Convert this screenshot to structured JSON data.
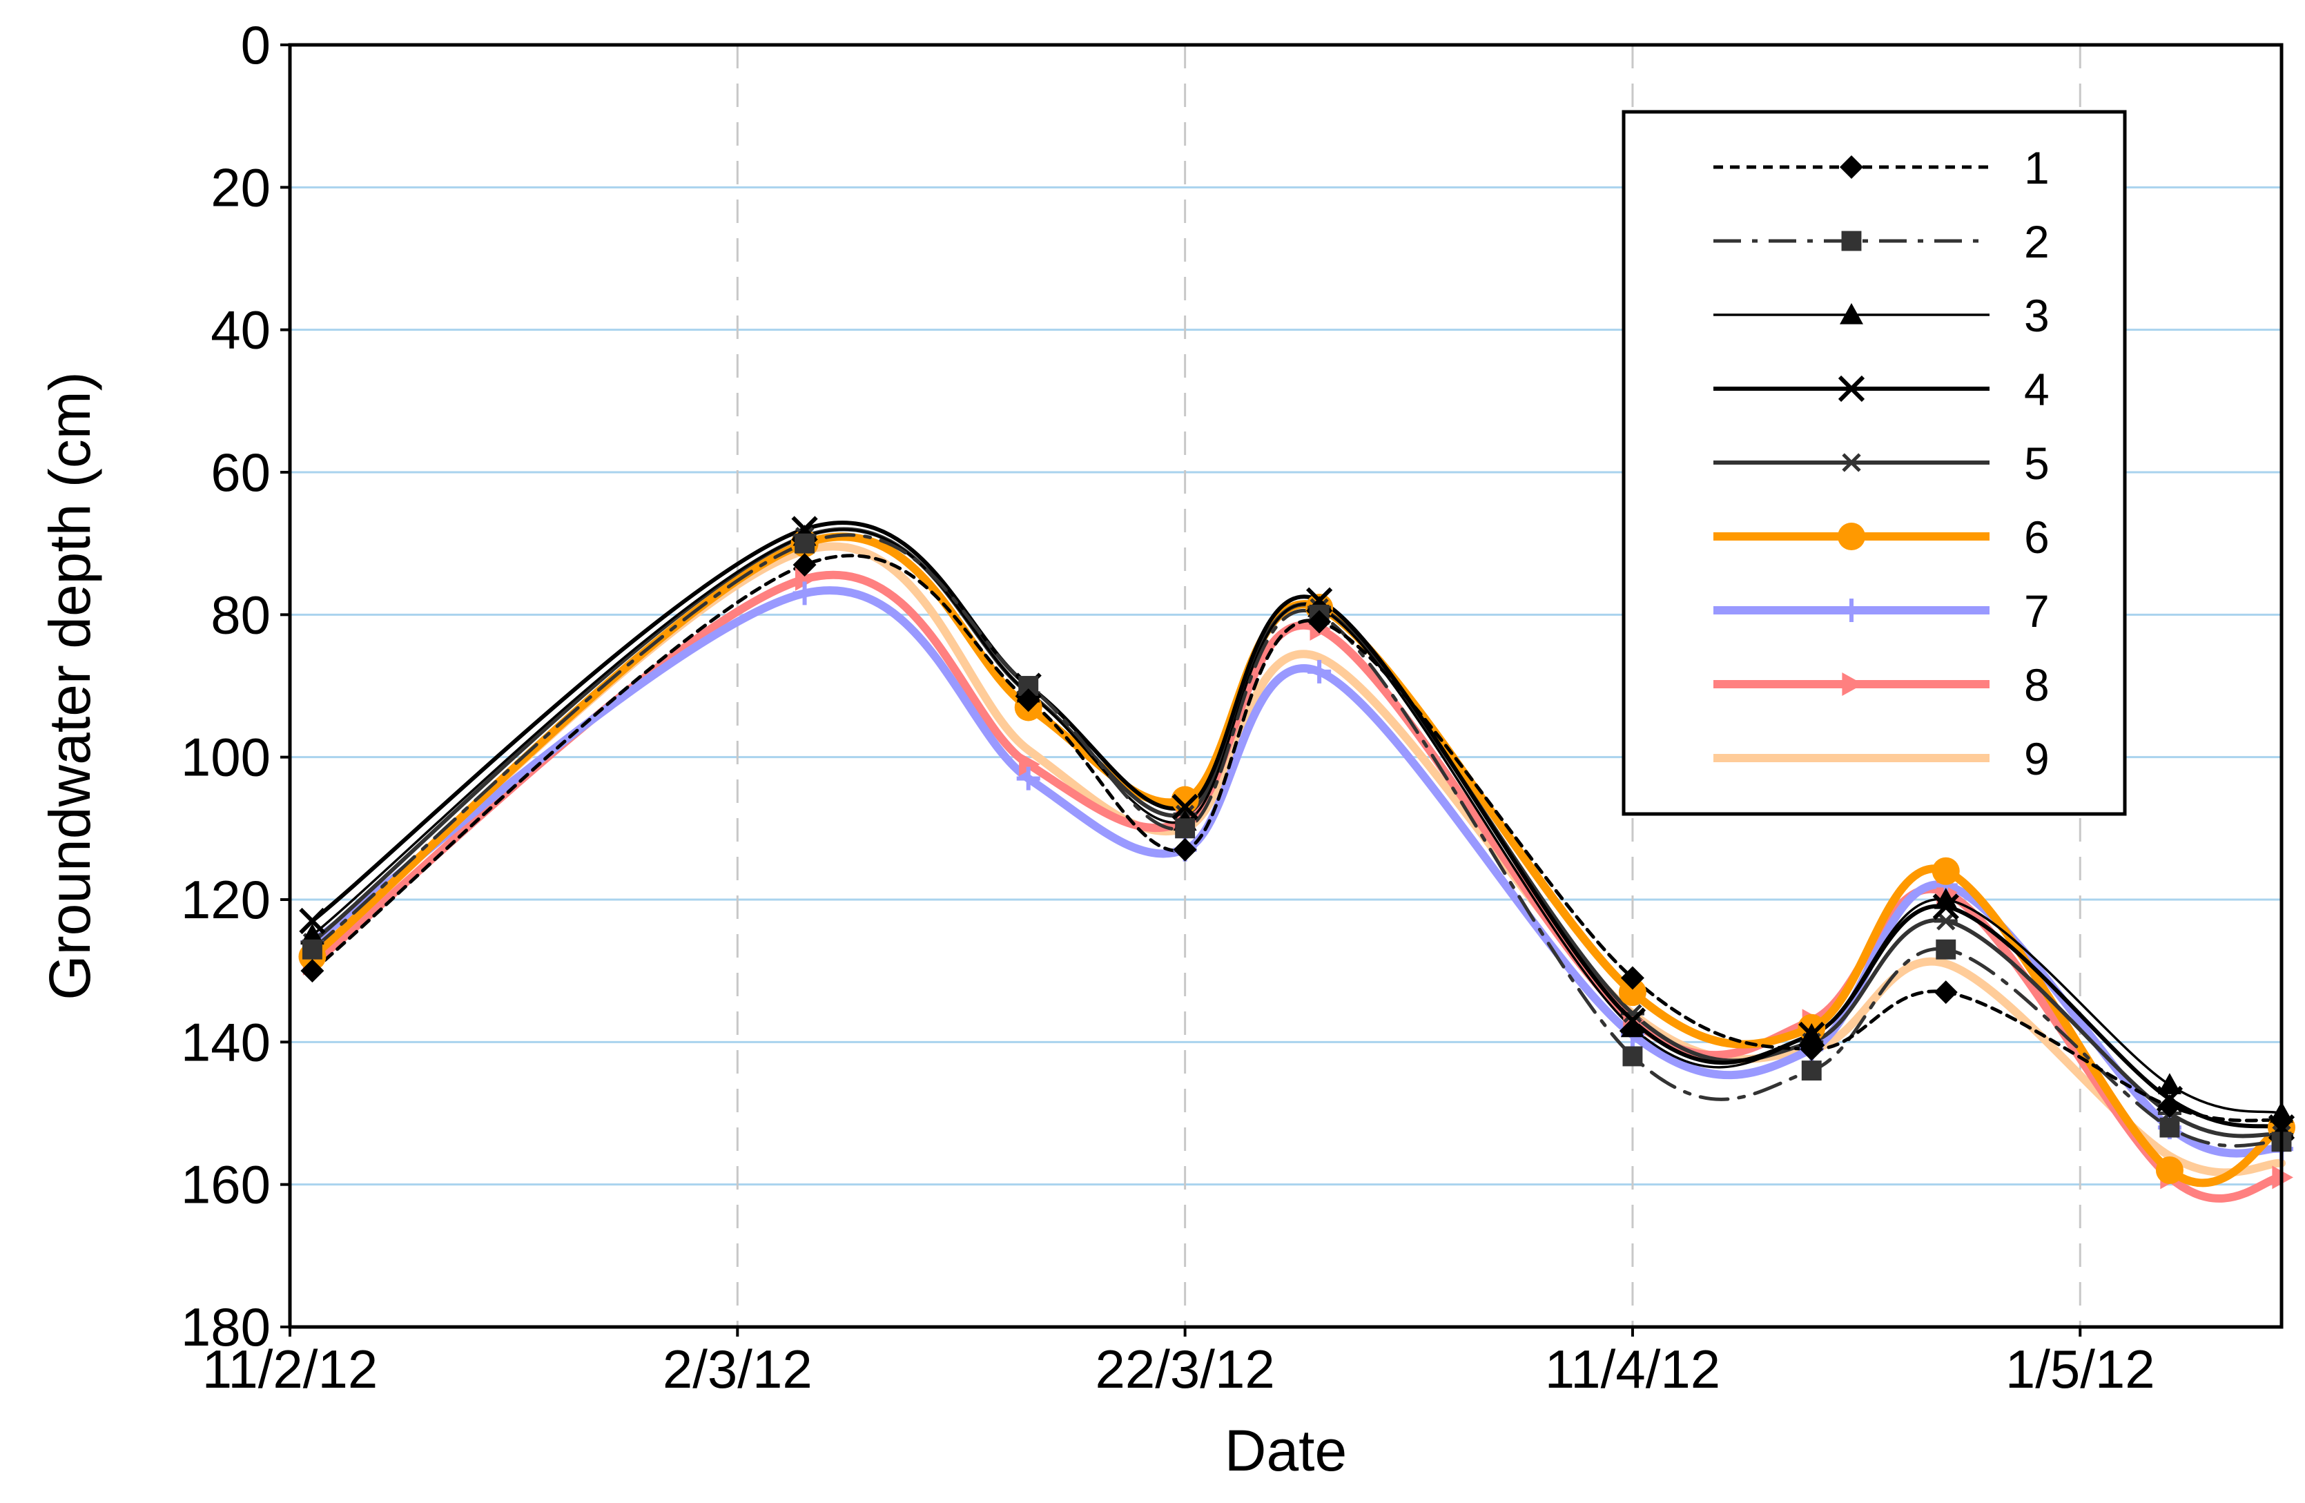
{
  "chart_data": {
    "type": "line",
    "xlabel": "Date",
    "ylabel": "Groundwater depth (cm)",
    "x_ticks": [
      "11/2/12",
      "2/3/12",
      "22/3/12",
      "11/4/12",
      "1/5/12"
    ],
    "x_tick_dates": [
      "2012-02-11",
      "2012-03-02",
      "2012-03-22",
      "2012-04-11",
      "2012-05-01"
    ],
    "xlim": [
      "2012-02-11",
      "2012-05-10"
    ],
    "ylim": [
      0,
      180
    ],
    "y_inverted": true,
    "y_ticks": [
      0,
      20,
      40,
      60,
      80,
      100,
      120,
      140,
      160,
      180
    ],
    "grid": {
      "vertical": "dashed",
      "horizontal": "solid"
    },
    "legend_position": "top-right",
    "x": [
      "2012-02-12",
      "2012-03-05",
      "2012-03-15",
      "2012-03-22",
      "2012-03-28",
      "2012-04-11",
      "2012-04-19",
      "2012-04-25",
      "2012-05-05",
      "2012-05-10"
    ],
    "series": [
      {
        "name": "1",
        "color": "#000000",
        "dash": "dotted",
        "marker": "diamond",
        "values": [
          130,
          73,
          92,
          113,
          81,
          131,
          141,
          133,
          149,
          151
        ]
      },
      {
        "name": "2",
        "color": "#333333",
        "dash": "longdash",
        "marker": "square",
        "values": [
          127,
          70,
          90,
          110,
          80,
          142,
          144,
          127,
          152,
          154
        ]
      },
      {
        "name": "3",
        "color": "#000000",
        "dash": "solid-thin",
        "marker": "triangle",
        "values": [
          125,
          69,
          91,
          109,
          79,
          138,
          139,
          120,
          146,
          150
        ]
      },
      {
        "name": "4",
        "color": "#000000",
        "dash": "solid",
        "marker": "x",
        "values": [
          123,
          68,
          90,
          107,
          78,
          137,
          139,
          121,
          148,
          152
        ]
      },
      {
        "name": "5",
        "color": "#333333",
        "dash": "solid",
        "marker": "asterisk",
        "values": [
          126,
          69,
          91,
          108,
          79,
          136,
          140,
          123,
          150,
          153
        ]
      },
      {
        "name": "6",
        "color": "#ff9900",
        "dash": "solid",
        "marker": "circle",
        "values": [
          128,
          70,
          93,
          106,
          79,
          133,
          138,
          116,
          158,
          152
        ]
      },
      {
        "name": "7",
        "color": "#9999ff",
        "dash": "solid",
        "marker": "plus",
        "values": [
          126,
          77,
          103,
          113,
          88,
          139,
          141,
          118,
          152,
          155
        ]
      },
      {
        "name": "8",
        "color": "#ff8080",
        "dash": "solid",
        "marker": "triangle-right",
        "values": [
          129,
          75,
          101,
          109,
          82,
          137,
          137,
          119,
          159,
          159
        ]
      },
      {
        "name": "9",
        "color": "#ffcc99",
        "dash": "solid",
        "marker": "none",
        "values": [
          128,
          71,
          99,
          110,
          86,
          136,
          141,
          129,
          156,
          157
        ]
      }
    ]
  }
}
